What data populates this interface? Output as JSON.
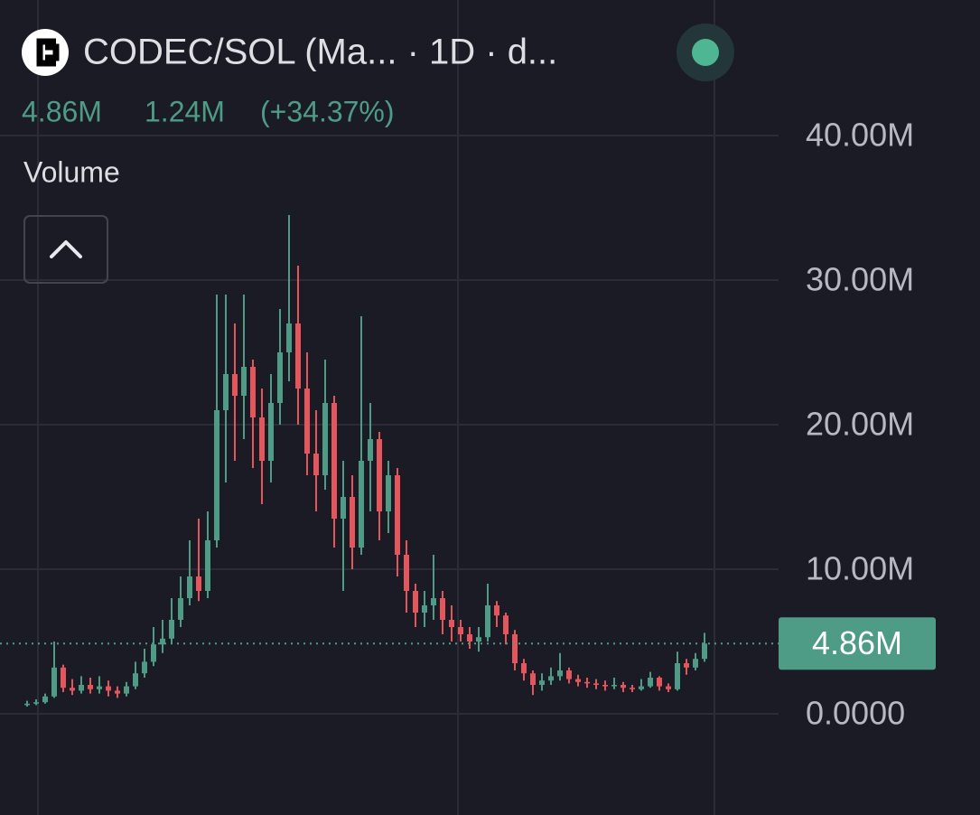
{
  "chart_data": {
    "type": "candlestick",
    "title": "CODEC/SOL (Ma... · 1D · d...",
    "legend_values": [
      "4.86M",
      "1.24M",
      "(+34.37%)"
    ],
    "series": [
      {
        "name": "Volume",
        "up_color": "#4e9c86",
        "down_color": "#e4555c",
        "open": [
          0.6,
          0.7,
          0.8,
          1.2,
          3.2,
          1.8,
          1.6,
          2.0,
          1.7,
          1.9,
          1.6,
          1.4,
          1.9,
          2.8,
          3.6,
          4.8,
          5.2,
          6.5,
          8.0,
          9.5,
          8.5,
          12.0,
          21.0,
          23.5,
          22.0,
          24.0,
          20.5,
          17.5,
          21.5,
          25.0,
          27.0,
          22.5,
          18.0,
          16.5,
          21.5,
          13.5,
          15.0,
          11.5,
          17.5,
          19.0,
          14.0,
          16.5,
          11.0,
          8.5,
          7.0,
          7.5,
          8.0,
          6.5,
          6.0,
          5.5,
          5.0,
          5.3,
          7.5,
          6.8,
          5.5,
          3.5,
          2.8,
          2.0,
          2.3,
          2.6,
          3.0,
          2.4,
          2.2,
          2.1,
          2.0,
          1.9,
          2.0,
          1.8,
          1.7,
          1.9,
          2.5,
          1.9,
          1.7,
          3.5,
          3.2,
          3.8
        ],
        "high": [
          0.9,
          1.0,
          1.4,
          5.0,
          3.4,
          2.4,
          2.6,
          2.5,
          2.6,
          2.3,
          1.9,
          2.2,
          3.6,
          4.5,
          6.0,
          6.5,
          8.0,
          9.5,
          12.0,
          13.5,
          14.0,
          29.0,
          29.0,
          27.0,
          29.0,
          24.5,
          22.5,
          23.5,
          28.0,
          34.5,
          31.0,
          25.0,
          21.0,
          24.5,
          22.0,
          17.5,
          16.5,
          27.5,
          21.5,
          19.5,
          17.5,
          17.0,
          12.0,
          9.0,
          8.5,
          11.0,
          8.5,
          7.5,
          6.5,
          6.0,
          6.0,
          9.0,
          7.8,
          7.0,
          5.8,
          3.8,
          3.0,
          2.8,
          3.2,
          4.2,
          3.2,
          2.7,
          2.5,
          2.4,
          2.3,
          2.5,
          2.2,
          2.0,
          2.4,
          2.9,
          2.6,
          2.1,
          4.3,
          3.8,
          4.2,
          5.6
        ],
        "low": [
          0.5,
          0.6,
          0.7,
          1.1,
          1.5,
          1.3,
          1.4,
          1.4,
          1.4,
          1.2,
          1.1,
          1.2,
          1.7,
          2.5,
          3.3,
          4.2,
          4.8,
          6.0,
          7.5,
          7.8,
          8.0,
          11.5,
          16.0,
          17.5,
          19.0,
          17.0,
          14.5,
          16.0,
          20.0,
          23.0,
          20.0,
          16.5,
          14.0,
          15.5,
          11.5,
          8.5,
          10.0,
          11.0,
          14.0,
          12.0,
          12.5,
          9.5,
          7.0,
          6.0,
          6.0,
          6.5,
          5.5,
          5.0,
          5.0,
          4.5,
          4.3,
          5.0,
          6.0,
          4.8,
          3.0,
          2.3,
          1.3,
          1.6,
          2.0,
          2.3,
          2.1,
          1.9,
          1.8,
          1.7,
          1.6,
          1.7,
          1.5,
          1.5,
          1.6,
          1.8,
          1.6,
          1.5,
          1.6,
          2.7,
          3.0,
          3.6
        ],
        "close": [
          0.7,
          0.8,
          1.2,
          3.2,
          1.8,
          1.6,
          2.0,
          1.7,
          1.9,
          1.6,
          1.4,
          1.9,
          2.8,
          3.6,
          4.8,
          5.2,
          6.5,
          8.0,
          9.5,
          8.5,
          12.0,
          21.0,
          23.5,
          22.0,
          24.0,
          20.5,
          17.5,
          21.5,
          25.0,
          27.0,
          22.5,
          18.0,
          16.5,
          21.5,
          13.5,
          15.0,
          11.5,
          17.5,
          19.0,
          14.0,
          16.5,
          11.0,
          8.5,
          7.0,
          7.5,
          8.0,
          6.5,
          6.0,
          5.5,
          5.0,
          5.3,
          7.5,
          6.8,
          5.5,
          3.5,
          2.8,
          2.0,
          2.3,
          2.6,
          3.0,
          2.4,
          2.2,
          2.1,
          2.0,
          1.9,
          2.0,
          1.8,
          1.7,
          1.9,
          2.5,
          1.9,
          1.7,
          3.5,
          3.2,
          3.8,
          4.86
        ]
      }
    ],
    "last_value": {
      "value": 4.86,
      "label": "4.86M"
    },
    "ylim": [
      -7,
      49.375
    ],
    "yticks": [
      {
        "value": 0,
        "label": "0.0000"
      },
      {
        "value": 10,
        "label": "10.00M"
      },
      {
        "value": 20,
        "label": "20.00M"
      },
      {
        "value": 30,
        "label": "30.00M"
      },
      {
        "value": 40,
        "label": "40.00M"
      }
    ],
    "grid": true
  }
}
